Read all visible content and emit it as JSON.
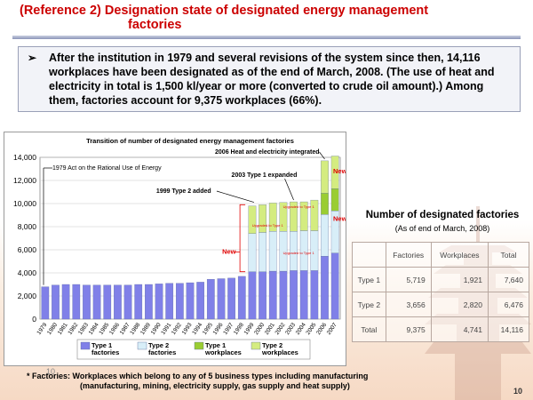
{
  "slide": {
    "title_line1": "(Reference 2) Designation state of designated energy management",
    "title_line2": "factories",
    "intro": "After the institution in 1979 and several revisions of the system since then, 14,116 workplaces have been designated as of the end of March, 2008. (The use of heat and electricity in total is 1,500 kl/year or more (converted to crude oil amount).) Among them, factories account for 9,375 workplaces (66%).",
    "footnote_line1": "* Factories: Workplaces which belong to any of 5 business types including manufacturing",
    "footnote_line2": "(manufacturing, mining, electricity supply, gas supply and heat supply)",
    "page_num_left": "10",
    "page_num_right": "10"
  },
  "table": {
    "title": "Number of designated factories",
    "subtitle": "(As of end of March, 2008)",
    "headers": [
      "",
      "Factories",
      "Workplaces",
      "Total"
    ],
    "rows": [
      [
        "Type 1",
        "5,719",
        "1,921",
        "7,640"
      ],
      [
        "Type 2",
        "3,656",
        "2,820",
        "6,476"
      ],
      [
        "Total",
        "9,375",
        "4,741",
        "14,116"
      ]
    ]
  },
  "chart_data": {
    "type": "bar",
    "title": "Transition of number of designated energy management factories",
    "categories": [
      "1979",
      "1980",
      "1981",
      "1982",
      "1983",
      "1984",
      "1985",
      "1986",
      "1987",
      "1988",
      "1989",
      "1990",
      "1991",
      "1992",
      "1993",
      "1994",
      "1995",
      "1996",
      "1997",
      "1998",
      "1999",
      "2000",
      "2001",
      "2002",
      "2003",
      "2004",
      "2005",
      "2006",
      "2007"
    ],
    "series": [
      {
        "name": "Type 1 factories",
        "color": "#8080e8",
        "values": [
          2800,
          2950,
          3000,
          3000,
          2950,
          2950,
          2950,
          2950,
          2950,
          3000,
          3000,
          3050,
          3100,
          3100,
          3150,
          3200,
          3450,
          3500,
          3550,
          3700,
          4100,
          4100,
          4150,
          4150,
          4200,
          4200,
          4200,
          5450,
          5719
        ]
      },
      {
        "name": "Type 2 factories",
        "color": "#d8eef8",
        "values": [
          0,
          0,
          0,
          0,
          0,
          0,
          0,
          0,
          0,
          0,
          0,
          0,
          0,
          0,
          0,
          0,
          0,
          0,
          0,
          0,
          3300,
          3400,
          3450,
          3450,
          3400,
          3450,
          3450,
          3600,
          3656
        ]
      },
      {
        "name": "Type 1 workplaces",
        "color": "#9acd32",
        "values": [
          0,
          0,
          0,
          0,
          0,
          0,
          0,
          0,
          0,
          0,
          0,
          0,
          0,
          0,
          0,
          0,
          0,
          0,
          0,
          0,
          0,
          0,
          0,
          0,
          0,
          0,
          0,
          1850,
          1921
        ]
      },
      {
        "name": "Type 2 workplaces",
        "color": "#d4ec80",
        "values": [
          0,
          0,
          0,
          0,
          0,
          0,
          0,
          0,
          0,
          0,
          0,
          0,
          0,
          0,
          0,
          0,
          0,
          0,
          0,
          0,
          2400,
          2400,
          2450,
          2500,
          2550,
          2500,
          2650,
          2800,
          2820
        ]
      }
    ],
    "ylim": [
      0,
      14000
    ],
    "yticks": [
      0,
      2000,
      4000,
      6000,
      8000,
      10000,
      12000,
      14000
    ],
    "ytick_labels": [
      "0",
      "2,000",
      "4,000",
      "6,000",
      "8,000",
      "10,000",
      "12,000",
      "14,000"
    ],
    "grid": true,
    "legend": [
      "Type 1\nfactories",
      "Type 2\nfactories",
      "Type 1\nworkplaces",
      "Type 2\nworkplaces"
    ],
    "annotations": {
      "a1979": "1979 Act on the Rational Use of Energy",
      "a1999": "1999 Type 2 added",
      "a2003": "2003 Type 1 expanded",
      "a2006": "2006 Heat and electricity integrated",
      "new": "New",
      "upgraded": "Upgraded to Type 1"
    }
  }
}
